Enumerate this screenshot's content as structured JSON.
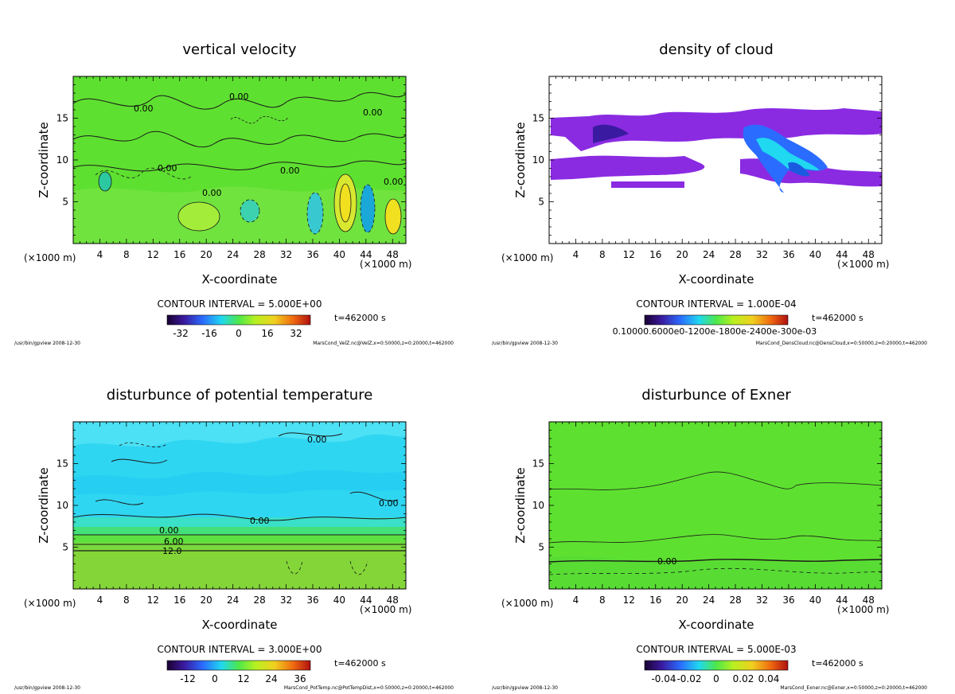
{
  "colors": {
    "field_green": "#5ee030",
    "cloud_purple": "#8a2be2",
    "temp_cyan": "#2fd6f2",
    "temp_low": "#7fd64a"
  },
  "chart_data": [
    {
      "type": "heatmap",
      "title": "vertical velocity",
      "xlabel": "X-coordinate",
      "ylabel": "Z-coordinate",
      "x_unit": "(×1000 m)",
      "x_unit_right": "(×1000 m)",
      "xlim": [
        0,
        50
      ],
      "ylim": [
        0,
        20
      ],
      "x_ticks": [
        4,
        8,
        12,
        16,
        20,
        24,
        28,
        32,
        36,
        40,
        44,
        48
      ],
      "y_ticks": [
        5,
        10,
        15
      ],
      "contour_interval": "CONTOUR INTERVAL = 5.000E+00",
      "time": "t=462000 s",
      "colorbar_ticks": [
        "-32",
        "-16",
        "0",
        "16",
        "32"
      ],
      "contour_labels": [
        "0.00",
        "0.00",
        "0.00",
        "0.00",
        "0.00",
        "0.00",
        "0.00"
      ],
      "footer_left": "/usr/bin/gpview  2008-12-30",
      "footer_right": "MarsCond_VelZ.nc@VelZ,x=0:50000,z=0:20000,t=462000"
    },
    {
      "type": "heatmap",
      "title": "density of cloud",
      "xlabel": "X-coordinate",
      "ylabel": "Z-coordinate",
      "x_unit": "(×1000 m)",
      "x_unit_right": "(×1000 m)",
      "xlim": [
        0,
        50
      ],
      "ylim": [
        0,
        20
      ],
      "x_ticks": [
        4,
        8,
        12,
        16,
        20,
        24,
        28,
        32,
        36,
        40,
        44,
        48
      ],
      "y_ticks": [
        5,
        10,
        15
      ],
      "contour_interval": "CONTOUR INTERVAL = 1.000E-04",
      "time": "t=462000 s",
      "colorbar_ticks": [
        "0.10000.6000e0-1200e-1800e-2400e-300e-03"
      ],
      "contour_labels": [],
      "footer_left": "/usr/bin/gpview  2008-12-30",
      "footer_right": "MarsCond_DensCloud.nc@DensCloud,x=0:50000,z=0:20000,t=462000"
    },
    {
      "type": "heatmap",
      "title": "disturbunce of potential temperature",
      "xlabel": "X-coordinate",
      "ylabel": "Z-coordinate",
      "x_unit": "(×1000 m)",
      "x_unit_right": "(×1000 m)",
      "xlim": [
        0,
        50
      ],
      "ylim": [
        0,
        20
      ],
      "x_ticks": [
        4,
        8,
        12,
        16,
        20,
        24,
        28,
        32,
        36,
        40,
        44,
        48
      ],
      "y_ticks": [
        5,
        10,
        15
      ],
      "contour_interval": "CONTOUR INTERVAL = 3.000E+00",
      "time": "t=462000 s",
      "colorbar_ticks": [
        "-12",
        "0",
        "12",
        "24",
        "36"
      ],
      "contour_labels": [
        "0.00",
        "0.00",
        "0.00",
        "0.00",
        "6.00",
        "12.0"
      ],
      "footer_left": "/usr/bin/gpview  2008-12-30",
      "footer_right": "MarsCond_PotTemp.nc@PotTempDist,x=0:50000,z=0:20000,t=462000"
    },
    {
      "type": "heatmap",
      "title": "disturbunce of Exner",
      "xlabel": "X-coordinate",
      "ylabel": "Z-coordinate",
      "x_unit": "(×1000 m)",
      "x_unit_right": "(×1000 m)",
      "xlim": [
        0,
        50
      ],
      "ylim": [
        0,
        20
      ],
      "x_ticks": [
        4,
        8,
        12,
        16,
        20,
        24,
        28,
        32,
        36,
        40,
        44,
        48
      ],
      "y_ticks": [
        5,
        10,
        15
      ],
      "contour_interval": "CONTOUR INTERVAL = 5.000E-03",
      "time": "t=462000 s",
      "colorbar_ticks": [
        "-0.04",
        "-0.02",
        "0",
        "0.02",
        "0.04"
      ],
      "contour_labels": [
        "0.00"
      ],
      "footer_left": "/usr/bin/gpview  2008-12-30",
      "footer_right": "MarsCond_Exner.nc@Exner,x=0:50000,z=0:20000,t=462000"
    }
  ]
}
